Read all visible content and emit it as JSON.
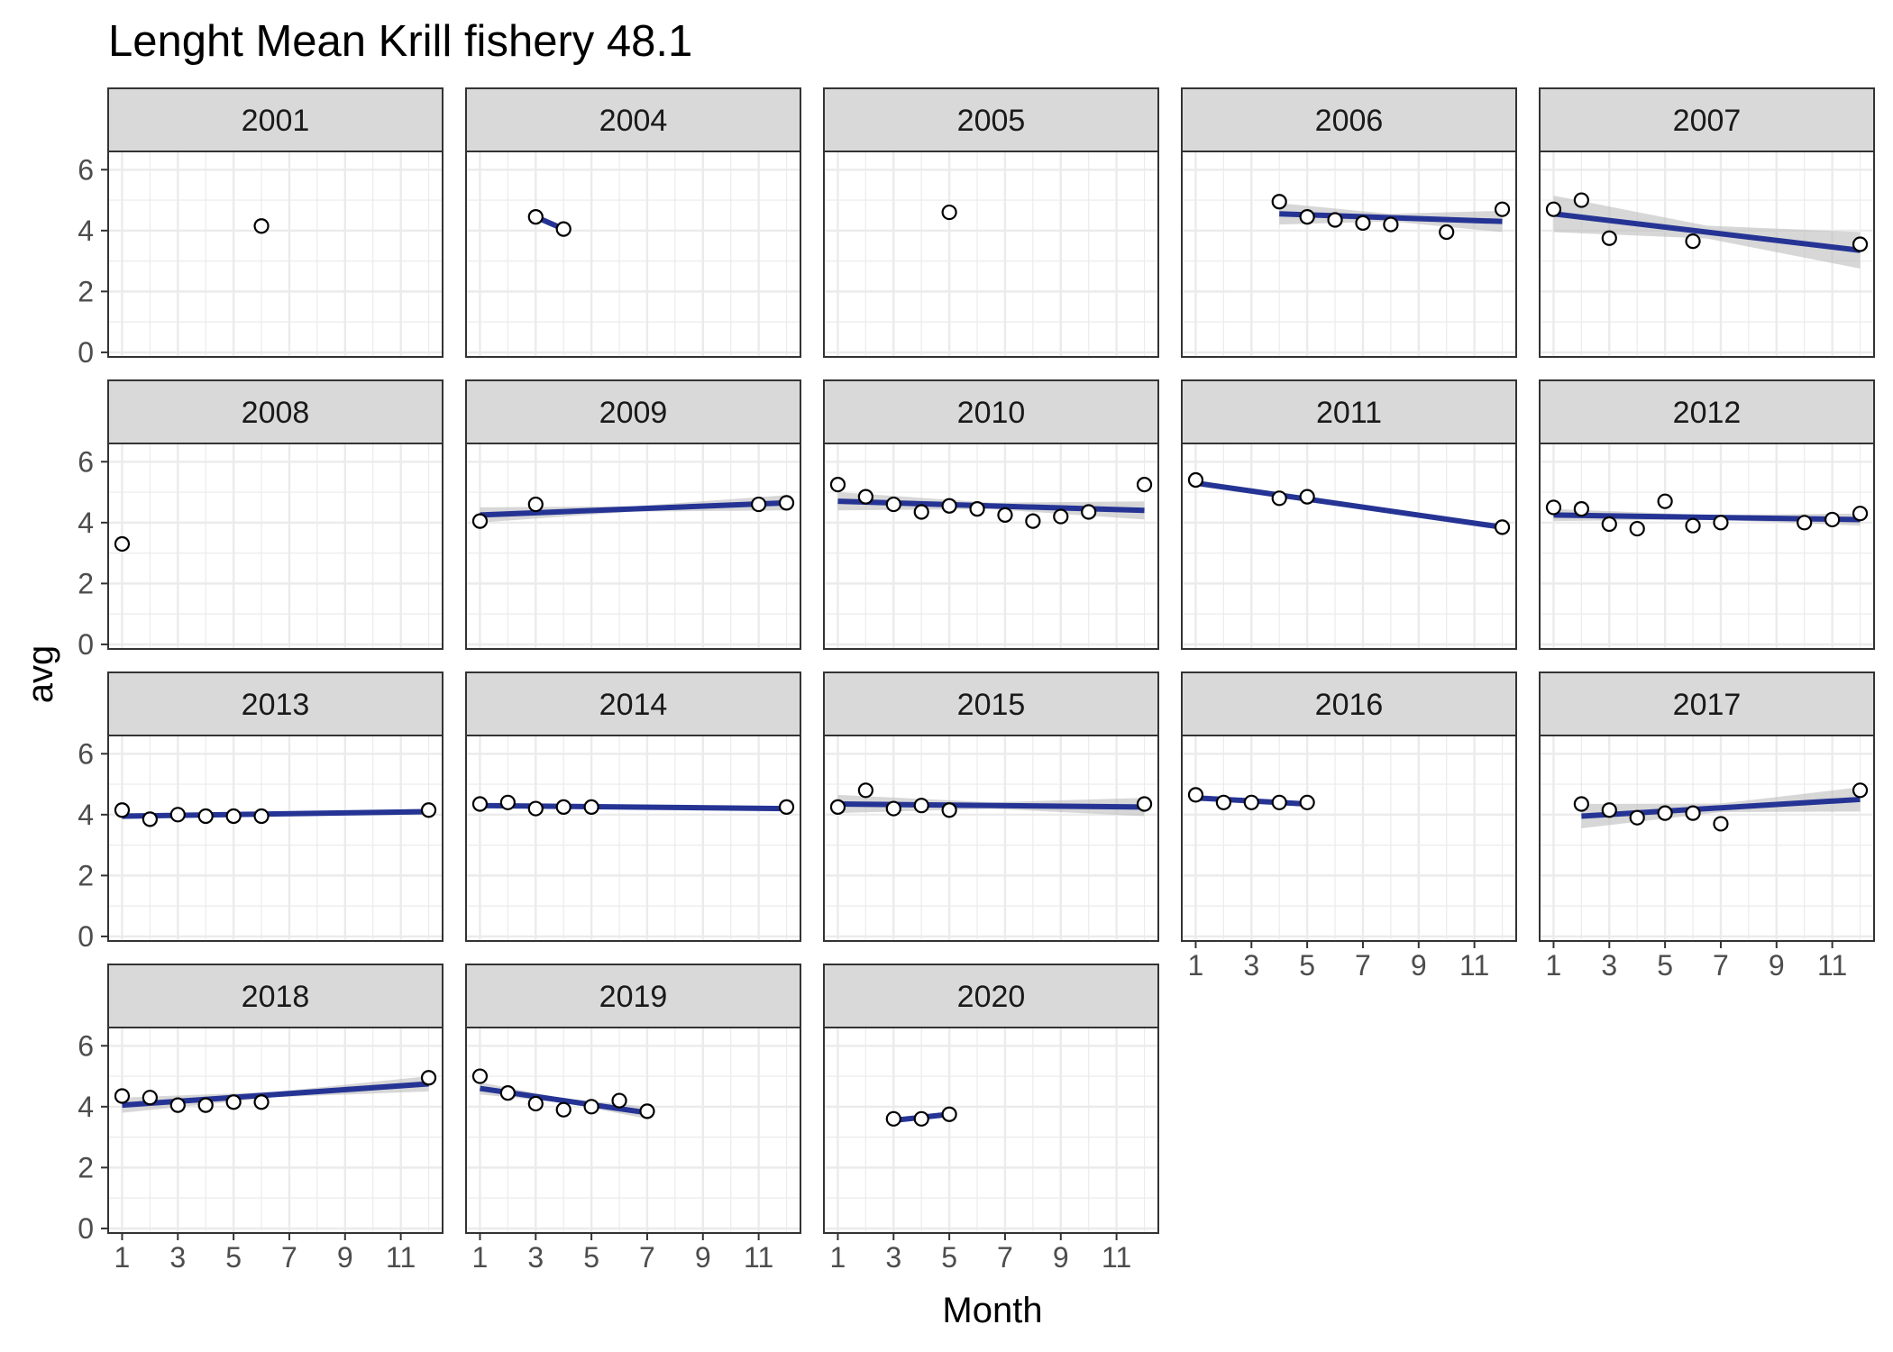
{
  "chart_data": {
    "type": "scatter",
    "title": "Lenght Mean Krill fishery 48.1",
    "xlabel": "Month",
    "ylabel": "avg",
    "xlim": [
      0.5,
      12.5
    ],
    "ylim": [
      -0.15,
      6.6
    ],
    "x_ticks": [
      1,
      3,
      5,
      7,
      9,
      11
    ],
    "y_ticks": [
      0,
      2,
      4,
      6
    ],
    "grid": true,
    "layout": {
      "columns": 5,
      "rows": 4
    },
    "colors": {
      "trend_line": "#253494",
      "confidence_band": "#bdbdbd",
      "strip_fill": "#d9d9d9",
      "panel_border": "#333333",
      "grid": "#ebebeb",
      "point_fill": "#ffffff",
      "point_stroke": "#000000"
    },
    "panels": [
      {
        "label": "2001",
        "x": [
          6
        ],
        "y": [
          4.15
        ],
        "fit": null,
        "se": 0
      },
      {
        "label": "2004",
        "x": [
          3,
          4
        ],
        "y": [
          4.45,
          4.05
        ],
        "fit": [
          3,
          4.45,
          4,
          4.05
        ],
        "se": 0
      },
      {
        "label": "2005",
        "x": [
          5
        ],
        "y": [
          4.6
        ],
        "fit": null,
        "se": 0
      },
      {
        "label": "2006",
        "x": [
          4,
          5,
          6,
          7,
          8,
          10,
          12
        ],
        "y": [
          4.95,
          4.45,
          4.35,
          4.25,
          4.2,
          3.95,
          4.7
        ],
        "fit": [
          4,
          4.55,
          12,
          4.3
        ],
        "se": 0.35
      },
      {
        "label": "2007",
        "x": [
          1,
          2,
          3,
          6,
          12
        ],
        "y": [
          4.7,
          5.0,
          3.75,
          3.65,
          3.55
        ],
        "fit": [
          1,
          4.55,
          12,
          3.35
        ],
        "se": 0.6
      },
      {
        "label": "2008",
        "x": [
          1
        ],
        "y": [
          3.3
        ],
        "fit": null,
        "se": 0
      },
      {
        "label": "2009",
        "x": [
          1,
          3,
          11,
          12
        ],
        "y": [
          4.05,
          4.6,
          4.6,
          4.65
        ],
        "fit": [
          1,
          4.25,
          12,
          4.65
        ],
        "se": 0.25
      },
      {
        "label": "2010",
        "x": [
          1,
          2,
          3,
          4,
          5,
          6,
          7,
          8,
          9,
          10,
          12
        ],
        "y": [
          5.25,
          4.85,
          4.6,
          4.35,
          4.55,
          4.45,
          4.25,
          4.05,
          4.2,
          4.35,
          5.25
        ],
        "fit": [
          1,
          4.7,
          12,
          4.4
        ],
        "se": 0.3
      },
      {
        "label": "2011",
        "x": [
          1,
          4,
          5,
          12
        ],
        "y": [
          5.4,
          4.8,
          4.85,
          3.85
        ],
        "fit": [
          1,
          5.3,
          12,
          3.85
        ],
        "se": 0.1
      },
      {
        "label": "2012",
        "x": [
          1,
          2,
          3,
          4,
          5,
          6,
          7,
          10,
          11,
          12
        ],
        "y": [
          4.5,
          4.45,
          3.95,
          3.8,
          4.7,
          3.9,
          4.0,
          4.0,
          4.1,
          4.3
        ],
        "fit": [
          1,
          4.25,
          12,
          4.1
        ],
        "se": 0.2
      },
      {
        "label": "2013",
        "x": [
          1,
          2,
          3,
          4,
          5,
          6,
          12
        ],
        "y": [
          4.15,
          3.85,
          4.0,
          3.95,
          3.95,
          3.95,
          4.15
        ],
        "fit": [
          1,
          3.95,
          12,
          4.1
        ],
        "se": 0.1
      },
      {
        "label": "2014",
        "x": [
          1,
          2,
          3,
          4,
          5,
          12
        ],
        "y": [
          4.35,
          4.4,
          4.2,
          4.25,
          4.25,
          4.25
        ],
        "fit": [
          1,
          4.3,
          12,
          4.2
        ],
        "se": 0.08
      },
      {
        "label": "2015",
        "x": [
          1,
          2,
          3,
          4,
          5,
          12
        ],
        "y": [
          4.25,
          4.8,
          4.2,
          4.3,
          4.15,
          4.35
        ],
        "fit": [
          1,
          4.35,
          12,
          4.25
        ],
        "se": 0.3
      },
      {
        "label": "2016",
        "x": [
          1,
          2,
          3,
          4,
          5
        ],
        "y": [
          4.65,
          4.4,
          4.4,
          4.4,
          4.4
        ],
        "fit": [
          1,
          4.55,
          5,
          4.35
        ],
        "se": 0.1
      },
      {
        "label": "2017",
        "x": [
          2,
          3,
          4,
          5,
          6,
          7,
          12
        ],
        "y": [
          4.35,
          4.15,
          3.9,
          4.05,
          4.05,
          3.7,
          4.8
        ],
        "fit": [
          2,
          3.95,
          12,
          4.5
        ],
        "se": 0.4
      },
      {
        "label": "2018",
        "x": [
          1,
          2,
          3,
          4,
          5,
          6,
          12
        ],
        "y": [
          4.35,
          4.3,
          4.05,
          4.05,
          4.15,
          4.15,
          4.95
        ],
        "fit": [
          1,
          4.05,
          12,
          4.75
        ],
        "se": 0.25
      },
      {
        "label": "2019",
        "x": [
          1,
          2,
          3,
          4,
          5,
          6,
          7
        ],
        "y": [
          5.0,
          4.45,
          4.1,
          3.9,
          4.0,
          4.2,
          3.85
        ],
        "fit": [
          1,
          4.6,
          7,
          3.8
        ],
        "se": 0.2
      },
      {
        "label": "2020",
        "x": [
          3,
          4,
          5
        ],
        "y": [
          3.6,
          3.6,
          3.75
        ],
        "fit": [
          3,
          3.55,
          5,
          3.75
        ],
        "se": 0.05
      }
    ]
  }
}
